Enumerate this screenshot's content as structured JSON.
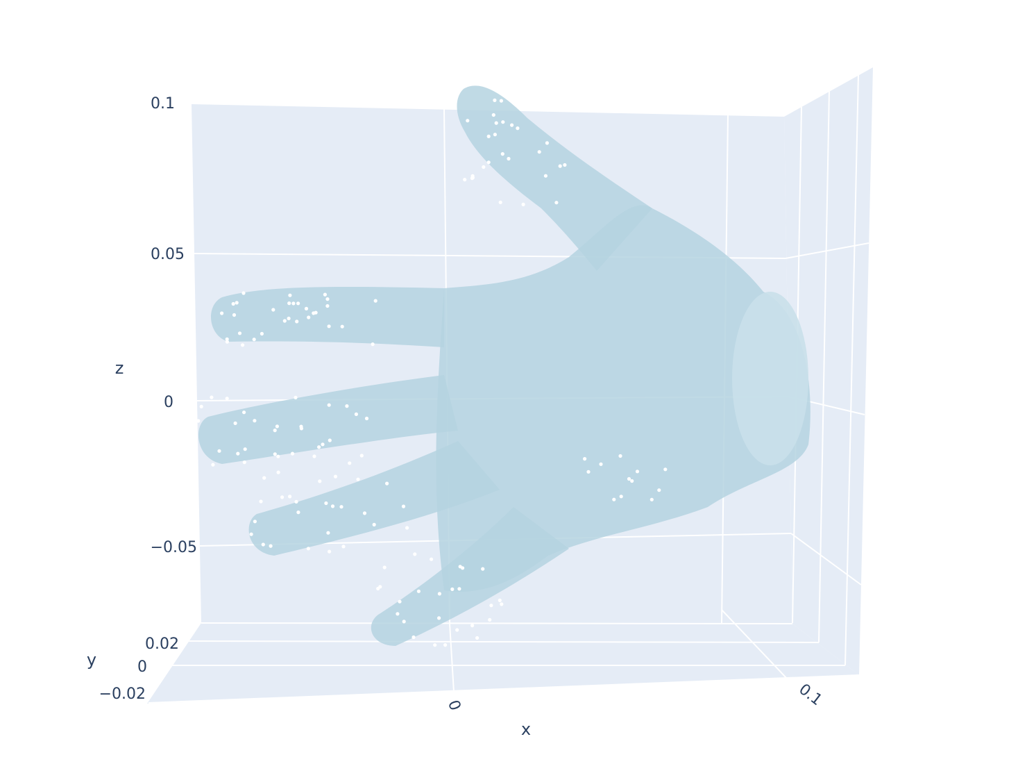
{
  "chart_data": {
    "type": "scatter",
    "scene": "3d-mesh-with-markers",
    "mesh": {
      "shape": "hand",
      "color": "#b5d3e0",
      "opacity": 0.8
    },
    "marker_color": "#ffffff",
    "background_color": "#e5ecf6",
    "grid_color": "#ffffff",
    "text_color": "#2a3f5f",
    "grid": true,
    "axes": {
      "x": {
        "title": "x",
        "ticks": [
          "0",
          "0.1"
        ]
      },
      "y": {
        "title": "y",
        "ticks": [
          "0.02",
          "0",
          "−0.02"
        ]
      },
      "z": {
        "title": "z",
        "ticks": [
          "0.1",
          "0.05",
          "0",
          "−0.05"
        ]
      }
    },
    "point_clusters": [
      {
        "region": "index-finger-tip",
        "count": 30
      },
      {
        "region": "middle-finger-tip",
        "count": 30
      },
      {
        "region": "ring-finger-tip",
        "count": 26
      },
      {
        "region": "little-finger-tip",
        "count": 26
      },
      {
        "region": "thumb-tip",
        "count": 28
      },
      {
        "region": "palm",
        "count": 12
      }
    ]
  }
}
